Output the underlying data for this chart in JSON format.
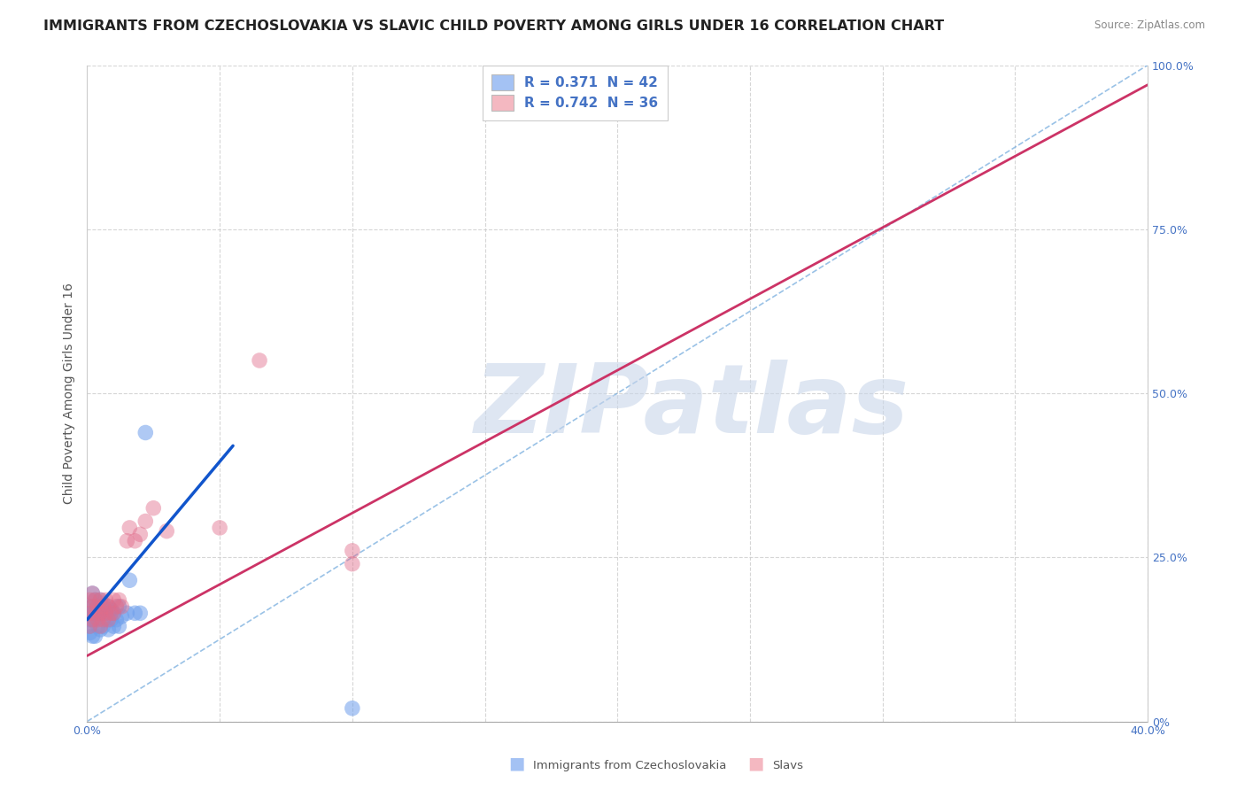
{
  "title": "IMMIGRANTS FROM CZECHOSLOVAKIA VS SLAVIC CHILD POVERTY AMONG GIRLS UNDER 16 CORRELATION CHART",
  "source": "Source: ZipAtlas.com",
  "ylabel": "Child Poverty Among Girls Under 16",
  "xlim": [
    0.0,
    0.4
  ],
  "ylim": [
    0.0,
    1.0
  ],
  "legend_r1": "R = 0.371  N = 42",
  "legend_r2": "R = 0.742  N = 36",
  "legend_color1": "#a4c2f4",
  "legend_color2": "#f4b8c1",
  "blue_dot_color": "#6d9eeb",
  "pink_dot_color": "#e06c8a",
  "blue_line_color": "#1155cc",
  "pink_line_color": "#cc3366",
  "diag_line_color": "#6fa8dc",
  "watermark_text": "ZIPatlas",
  "watermark_color": "#c9d6ea",
  "blue_scatter_x": [
    0.001,
    0.001,
    0.001,
    0.001,
    0.002,
    0.002,
    0.002,
    0.002,
    0.002,
    0.003,
    0.003,
    0.003,
    0.003,
    0.004,
    0.004,
    0.004,
    0.005,
    0.005,
    0.005,
    0.005,
    0.006,
    0.006,
    0.006,
    0.007,
    0.007,
    0.008,
    0.008,
    0.008,
    0.009,
    0.009,
    0.01,
    0.01,
    0.011,
    0.012,
    0.012,
    0.013,
    0.015,
    0.016,
    0.018,
    0.02,
    0.022,
    0.1
  ],
  "blue_scatter_y": [
    0.175,
    0.155,
    0.145,
    0.135,
    0.195,
    0.175,
    0.165,
    0.155,
    0.13,
    0.185,
    0.17,
    0.155,
    0.13,
    0.175,
    0.165,
    0.145,
    0.185,
    0.175,
    0.165,
    0.14,
    0.18,
    0.165,
    0.145,
    0.17,
    0.155,
    0.175,
    0.165,
    0.14,
    0.17,
    0.155,
    0.165,
    0.145,
    0.155,
    0.175,
    0.145,
    0.16,
    0.165,
    0.215,
    0.165,
    0.165,
    0.44,
    0.02
  ],
  "pink_scatter_x": [
    0.001,
    0.001,
    0.001,
    0.002,
    0.002,
    0.002,
    0.003,
    0.003,
    0.004,
    0.004,
    0.005,
    0.005,
    0.005,
    0.006,
    0.006,
    0.007,
    0.007,
    0.008,
    0.008,
    0.009,
    0.01,
    0.01,
    0.011,
    0.012,
    0.013,
    0.015,
    0.016,
    0.018,
    0.02,
    0.022,
    0.025,
    0.03,
    0.05,
    0.065,
    0.1,
    0.1
  ],
  "pink_scatter_y": [
    0.185,
    0.165,
    0.145,
    0.195,
    0.175,
    0.155,
    0.185,
    0.165,
    0.175,
    0.155,
    0.185,
    0.165,
    0.145,
    0.175,
    0.155,
    0.185,
    0.165,
    0.175,
    0.155,
    0.165,
    0.185,
    0.165,
    0.175,
    0.185,
    0.175,
    0.275,
    0.295,
    0.275,
    0.285,
    0.305,
    0.325,
    0.29,
    0.295,
    0.55,
    0.26,
    0.24
  ],
  "blue_line_x": [
    0.0,
    0.055
  ],
  "blue_line_y": [
    0.155,
    0.42
  ],
  "pink_line_x": [
    0.0,
    0.4
  ],
  "pink_line_y": [
    0.1,
    0.97
  ],
  "diag_line_x": [
    0.0,
    0.4
  ],
  "diag_line_y": [
    0.0,
    1.0
  ],
  "title_fontsize": 11.5,
  "axis_label_fontsize": 10,
  "tick_fontsize": 9,
  "legend_fontsize": 10,
  "bottom_legend_label1": "Immigrants from Czechoslovakia",
  "bottom_legend_label2": "Slavs"
}
